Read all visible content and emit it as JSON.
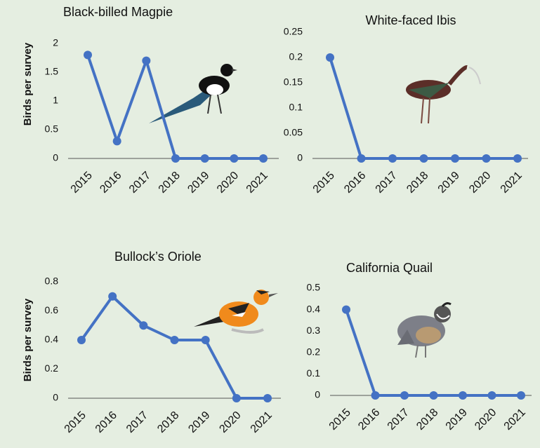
{
  "chart_data": [
    {
      "type": "line",
      "title": "Black-billed Magpie",
      "y_label": "Birds per survey",
      "categories": [
        "2015",
        "2016",
        "2017",
        "2018",
        "2019",
        "2020",
        "2021"
      ],
      "series": [
        {
          "name": "Black-billed Magpie",
          "color": "#4472c4",
          "values": [
            1.8,
            0.3,
            1.7,
            0,
            0,
            0,
            0
          ]
        }
      ],
      "ylim": [
        0,
        2
      ],
      "yticks": [
        0,
        0.5,
        1,
        1.5,
        2
      ],
      "grid": false
    },
    {
      "type": "line",
      "title": "White-faced Ibis",
      "categories": [
        "2015",
        "2016",
        "2017",
        "2018",
        "2019",
        "2020",
        "2021"
      ],
      "series": [
        {
          "name": "White-faced Ibis",
          "color": "#4472c4",
          "values": [
            0.2,
            0,
            0,
            0,
            0,
            0,
            0
          ]
        }
      ],
      "ylim": [
        0,
        0.25
      ],
      "yticks": [
        0,
        0.05,
        0.1,
        0.15,
        0.2,
        0.25
      ],
      "grid": false
    },
    {
      "type": "line",
      "title": "Bullock’s Oriole",
      "y_label": "Birds per survey",
      "categories": [
        "2015",
        "2016",
        "2017",
        "2018",
        "2019",
        "2020",
        "2021"
      ],
      "series": [
        {
          "name": "Bullock’s Oriole",
          "color": "#4472c4",
          "values": [
            0.4,
            0.7,
            0.5,
            0.4,
            0.4,
            0,
            0
          ]
        }
      ],
      "ylim": [
        0,
        0.8
      ],
      "yticks": [
        0,
        0.2,
        0.4,
        0.6,
        0.8
      ],
      "grid": false
    },
    {
      "type": "line",
      "title": "California Quail",
      "categories": [
        "2015",
        "2016",
        "2017",
        "2018",
        "2019",
        "2020",
        "2021"
      ],
      "series": [
        {
          "name": "California Quail",
          "color": "#4472c4",
          "values": [
            0.4,
            0,
            0,
            0,
            0,
            0,
            0
          ]
        }
      ],
      "ylim": [
        0,
        0.5
      ],
      "yticks": [
        0,
        0.1,
        0.2,
        0.3,
        0.4,
        0.5
      ],
      "grid": false
    }
  ]
}
